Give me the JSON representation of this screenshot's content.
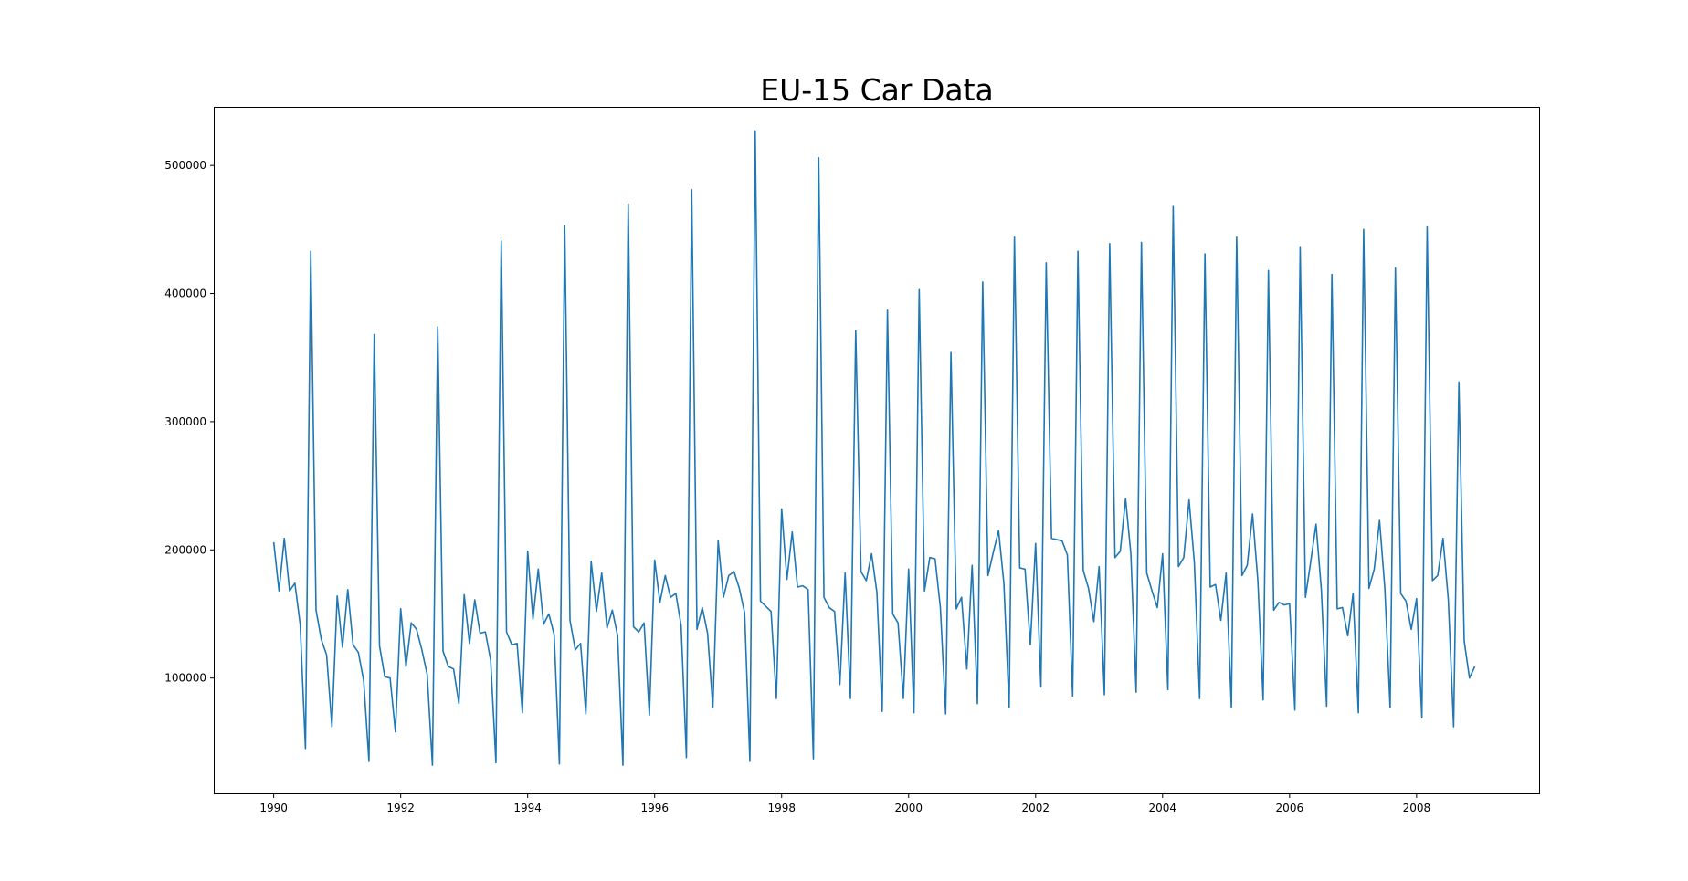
{
  "chart_data": {
    "type": "line",
    "title": "EU-15 Car Data",
    "xlabel": "",
    "ylabel": "",
    "xlim": [
      1989.07,
      2009.93
    ],
    "ylim": [
      10000,
      545000
    ],
    "grid": false,
    "legend": "none",
    "line_color": "#1f77b4",
    "x_ticks": [
      1990,
      1992,
      1994,
      1996,
      1998,
      2000,
      2002,
      2004,
      2006,
      2008
    ],
    "x_tick_labels": [
      "1990",
      "1992",
      "1994",
      "1996",
      "1998",
      "2000",
      "2002",
      "2004",
      "2006",
      "2008"
    ],
    "y_ticks": [
      100000,
      200000,
      300000,
      400000,
      500000
    ],
    "y_tick_labels": [
      "100000",
      "200000",
      "300000",
      "400000",
      "500000"
    ],
    "x_start": "1990-01",
    "x_step": "1 month",
    "values": [
      206000,
      168000,
      209000,
      168000,
      174000,
      142000,
      45000,
      433000,
      153000,
      130000,
      118000,
      62000,
      164000,
      124000,
      169000,
      126000,
      120000,
      98000,
      35000,
      368000,
      125000,
      101000,
      100000,
      58000,
      154000,
      109000,
      143000,
      138000,
      122000,
      103000,
      32000,
      374000,
      121000,
      109000,
      107000,
      80000,
      165000,
      127000,
      161000,
      135000,
      136000,
      114000,
      34000,
      441000,
      136000,
      126000,
      127000,
      73000,
      199000,
      146000,
      185000,
      142000,
      150000,
      134000,
      33000,
      453000,
      145000,
      122000,
      127000,
      72000,
      191000,
      152000,
      182000,
      139000,
      153000,
      133000,
      32000,
      470000,
      140000,
      136000,
      143000,
      71000,
      192000,
      159000,
      180000,
      163000,
      166000,
      141000,
      38000,
      481000,
      138000,
      155000,
      135000,
      77000,
      207000,
      163000,
      180000,
      183000,
      170000,
      151000,
      35000,
      527000,
      160000,
      156000,
      152000,
      84000,
      232000,
      177000,
      214000,
      171000,
      172000,
      169000,
      37000,
      506000,
      163000,
      155000,
      152000,
      95000,
      182000,
      84000,
      371000,
      183000,
      176000,
      197000,
      167000,
      74000,
      387000,
      150000,
      143000,
      84000,
      185000,
      73000,
      403000,
      168000,
      194000,
      193000,
      155000,
      72000,
      354000,
      154000,
      163000,
      107000,
      188000,
      80000,
      409000,
      180000,
      198000,
      215000,
      174000,
      77000,
      444000,
      186000,
      185000,
      126000,
      205000,
      93000,
      424000,
      209000,
      208000,
      207000,
      196000,
      86000,
      433000,
      184000,
      170000,
      144000,
      187000,
      87000,
      439000,
      194000,
      199000,
      240000,
      197000,
      89000,
      440000,
      182000,
      168000,
      155000,
      197000,
      91000,
      468000,
      187000,
      194000,
      239000,
      190000,
      84000,
      431000,
      171000,
      173000,
      145000,
      182000,
      77000,
      444000,
      180000,
      188000,
      228000,
      176000,
      83000,
      418000,
      153000,
      159000,
      157000,
      158000,
      75000,
      436000,
      163000,
      191000,
      220000,
      169000,
      78000,
      415000,
      154000,
      155000,
      133000,
      166000,
      73000,
      450000,
      170000,
      185000,
      223000,
      170000,
      77000,
      420000,
      166000,
      160000,
      138000,
      162000,
      69000,
      452000,
      176000,
      180000,
      209000,
      161000,
      62000,
      331000,
      129000,
      100000,
      109000
    ]
  }
}
